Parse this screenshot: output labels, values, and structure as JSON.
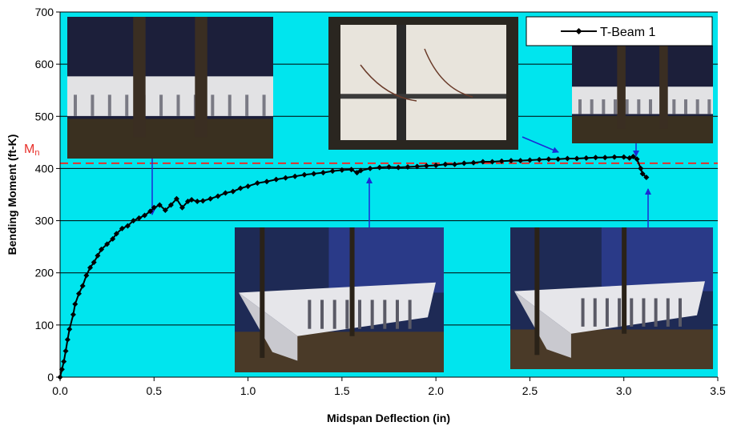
{
  "chart_data": {
    "type": "line",
    "xlabel": "Midspan Deflection (in)",
    "ylabel": "Bending Moment (ft-K)",
    "xlim": [
      0,
      3.5
    ],
    "ylim": [
      0,
      700
    ],
    "x_ticks": [
      "0.0",
      "0.5",
      "1.0",
      "1.5",
      "2.0",
      "2.5",
      "3.0",
      "3.5"
    ],
    "y_ticks": [
      "0",
      "100",
      "200",
      "300",
      "400",
      "500",
      "600",
      "700"
    ],
    "grid": "horizontal",
    "plot_background": "#00e5ee",
    "legend_position": "top-right",
    "reference_line": {
      "label_main": "M",
      "label_sub": "n",
      "value": 410,
      "color": "#e8302a"
    },
    "series": [
      {
        "name": "T-Beam 1",
        "color": "#000000",
        "x": [
          0.0,
          0.01,
          0.02,
          0.03,
          0.04,
          0.05,
          0.07,
          0.08,
          0.1,
          0.12,
          0.14,
          0.16,
          0.18,
          0.2,
          0.22,
          0.25,
          0.28,
          0.3,
          0.33,
          0.36,
          0.39,
          0.42,
          0.45,
          0.48,
          0.5,
          0.53,
          0.56,
          0.59,
          0.62,
          0.65,
          0.68,
          0.7,
          0.73,
          0.76,
          0.8,
          0.84,
          0.88,
          0.92,
          0.96,
          1.0,
          1.05,
          1.1,
          1.15,
          1.2,
          1.25,
          1.3,
          1.35,
          1.4,
          1.45,
          1.5,
          1.55,
          1.58,
          1.6,
          1.65,
          1.7,
          1.75,
          1.8,
          1.85,
          1.9,
          1.95,
          2.0,
          2.05,
          2.1,
          2.15,
          2.2,
          2.25,
          2.3,
          2.35,
          2.4,
          2.45,
          2.5,
          2.55,
          2.6,
          2.65,
          2.7,
          2.75,
          2.8,
          2.85,
          2.9,
          2.95,
          3.0,
          3.03,
          3.05,
          3.07,
          3.09,
          3.1,
          3.12
        ],
        "y": [
          0,
          15,
          30,
          50,
          72,
          92,
          120,
          140,
          160,
          175,
          195,
          210,
          220,
          233,
          245,
          255,
          265,
          275,
          285,
          290,
          300,
          305,
          310,
          318,
          325,
          330,
          320,
          330,
          342,
          325,
          337,
          340,
          337,
          338,
          342,
          347,
          353,
          356,
          362,
          366,
          372,
          375,
          379,
          382,
          385,
          388,
          390,
          392,
          395,
          397,
          398,
          392,
          396,
          400,
          402,
          403,
          402,
          403,
          404,
          405,
          406,
          408,
          408,
          410,
          411,
          413,
          413,
          414,
          415,
          415,
          416,
          417,
          418,
          418,
          419,
          419,
          420,
          421,
          421,
          422,
          422,
          420,
          423,
          418,
          400,
          390,
          383
        ]
      }
    ],
    "annotation_photos": [
      "upper-left beam specimen photo",
      "close-up cracked beam photo",
      "upper-right beam specimen photo",
      "lower-middle full beam photo",
      "lower-right full beam photo"
    ]
  }
}
